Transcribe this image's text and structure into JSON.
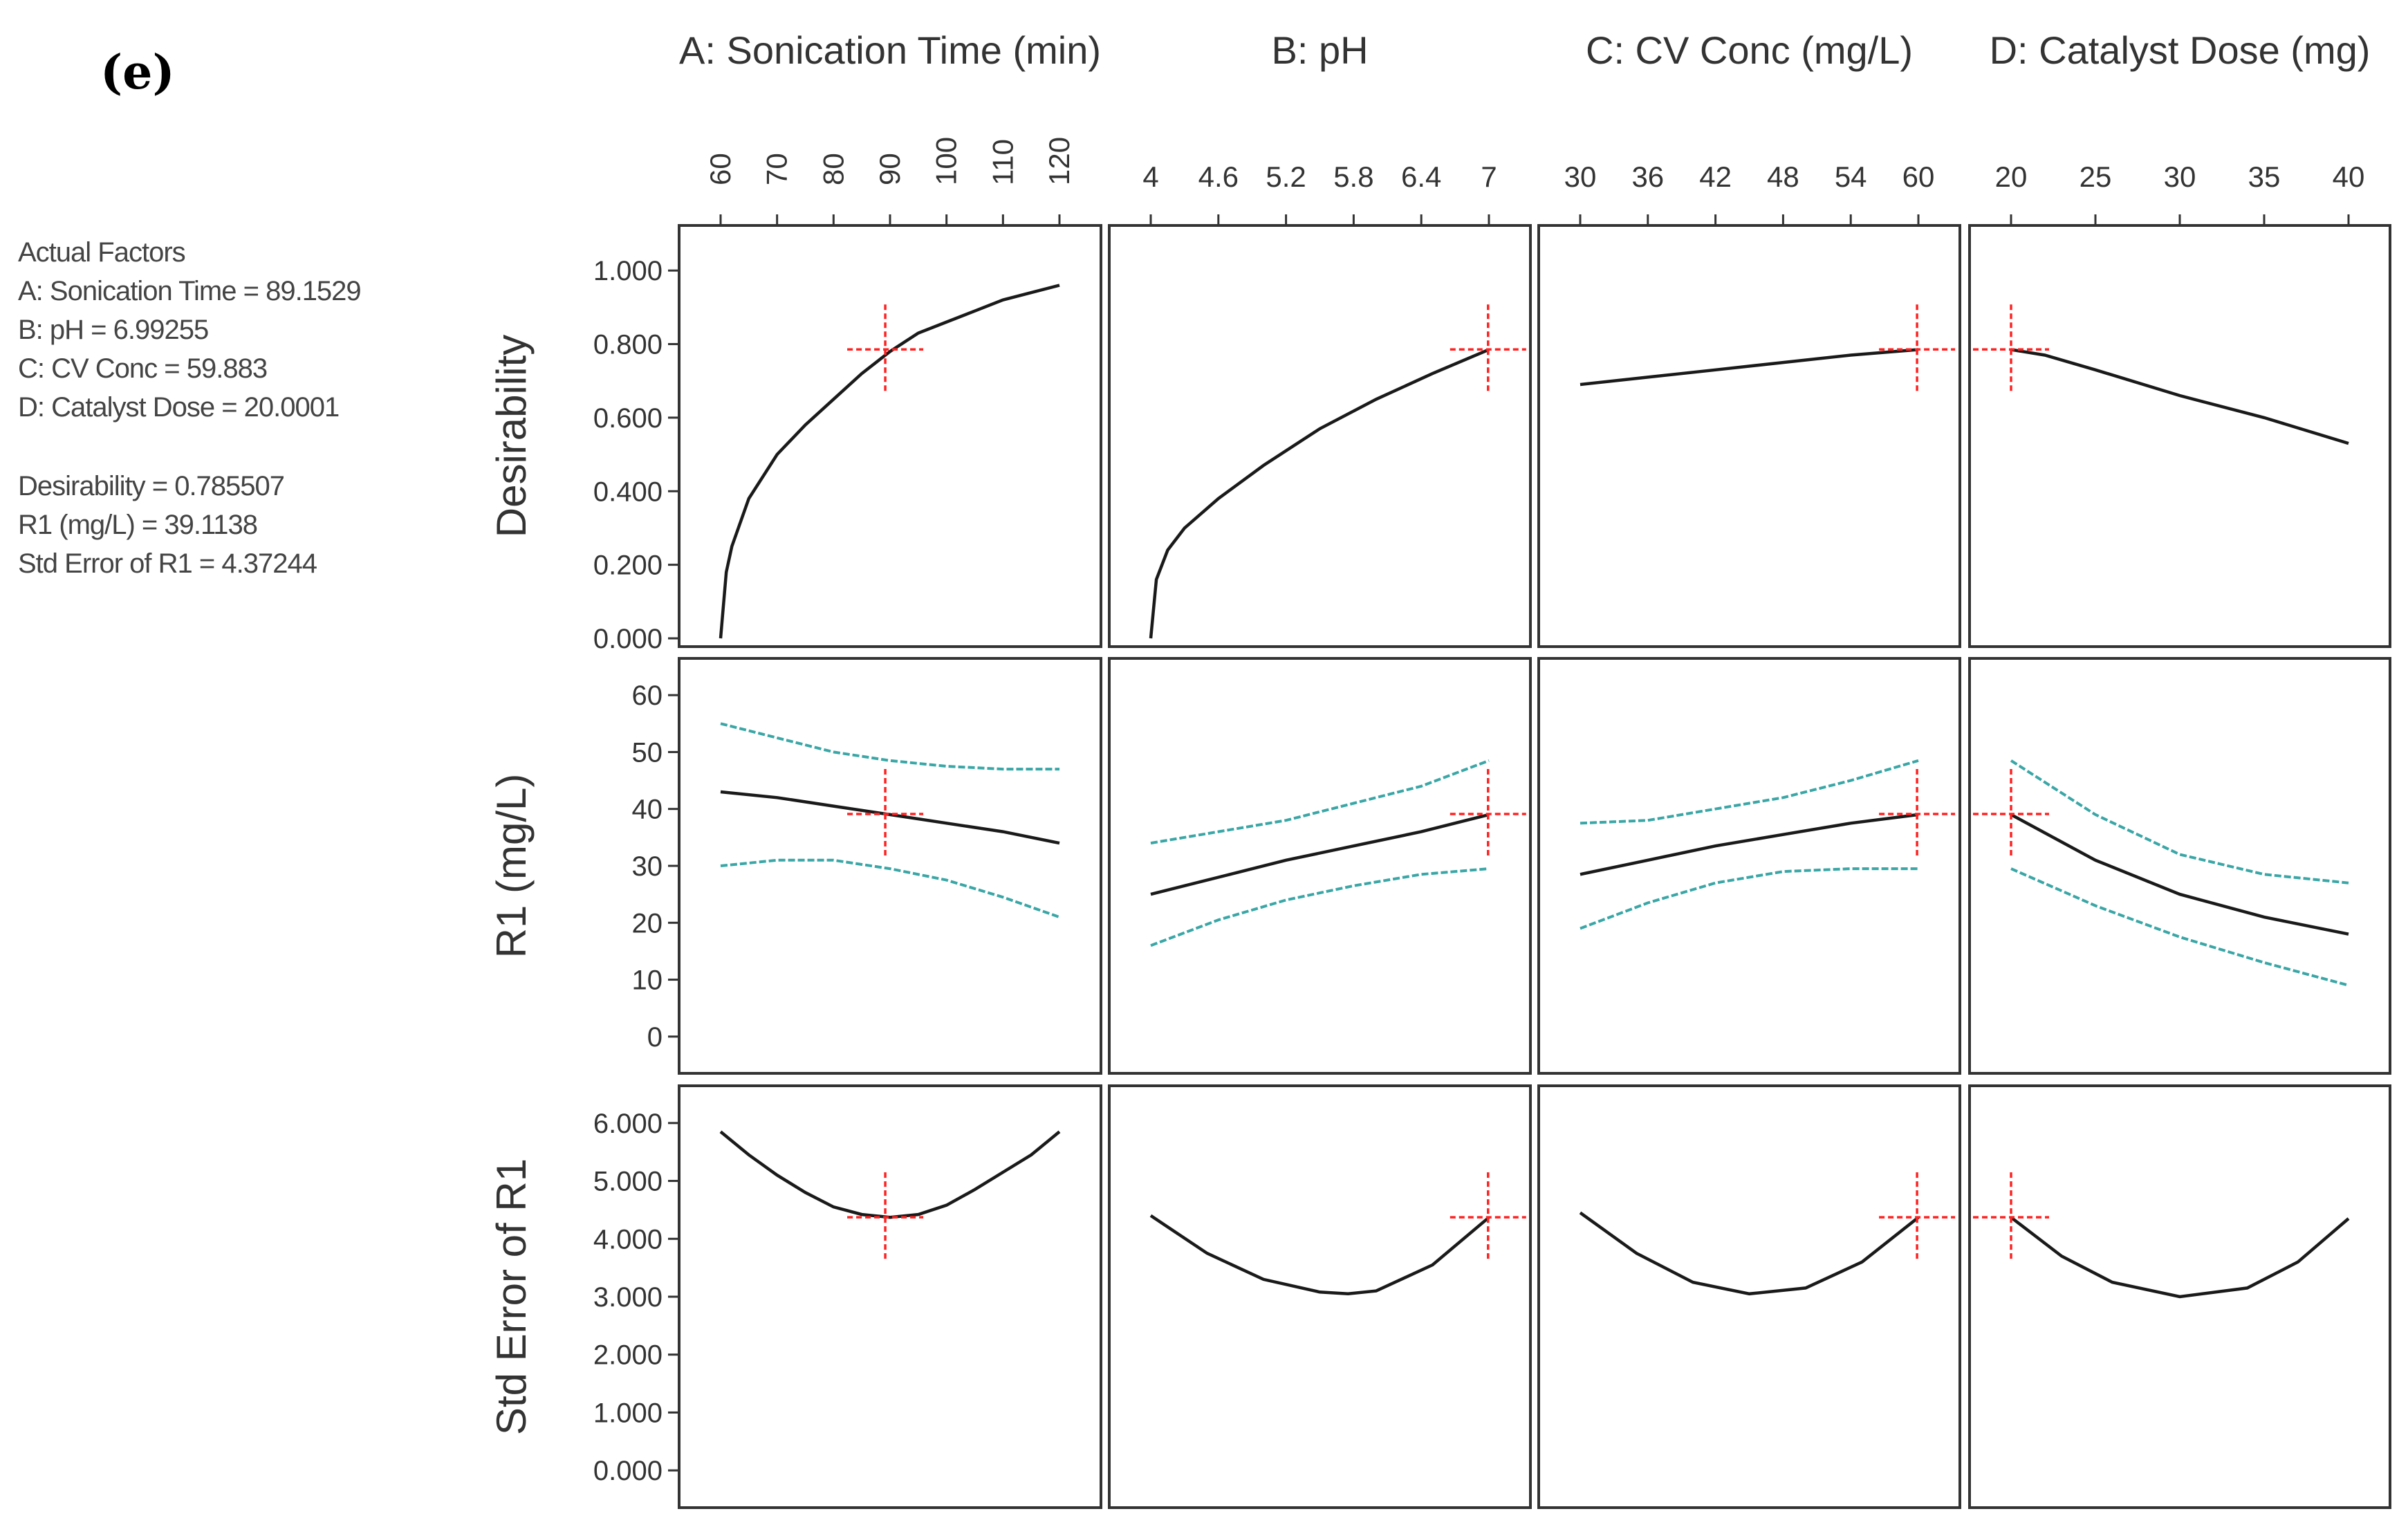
{
  "panel_label": "(e)",
  "info": {
    "header": "Actual Factors",
    "factors": [
      "A: Sonication Time = 89.1529",
      "B: pH = 6.99255",
      "C: CV Conc = 59.883",
      "D: Catalyst Dose = 20.0001"
    ],
    "results": [
      "Desirability = 0.785507",
      "R1 (mg/L) = 39.1138",
      "Std Error of R1 = 4.37244"
    ]
  },
  "colors": {
    "curve": "#1a1a1a",
    "band": "#3aa6a6",
    "marker": "#ff2222",
    "frame": "#333333"
  },
  "chart_data": {
    "type": "line",
    "title": "",
    "factors": [
      {
        "name": "A: Sonication Time (min)",
        "title_shown": "A: Sonication Time (min)",
        "ticks": [
          60,
          70,
          80,
          90,
          100,
          110,
          120
        ],
        "ticks_rotated": true,
        "range": [
          60,
          120
        ],
        "current": 89.1529
      },
      {
        "name": "B: pH",
        "title_shown": "B: pH",
        "ticks": [
          4,
          4.6,
          5.2,
          5.8,
          6.4,
          7
        ],
        "ticks_rotated": false,
        "range": [
          4,
          7
        ],
        "current": 6.99255
      },
      {
        "name": "C: CV Conc (mg/L)",
        "title_shown": "C: CV Conc (mg/L)",
        "ticks": [
          30,
          36,
          42,
          48,
          54,
          60
        ],
        "ticks_rotated": false,
        "range": [
          30,
          60
        ],
        "current": 59.883
      },
      {
        "name": "D: Catalyst Dose (mg)",
        "title_shown": "D: Catalyst Dose (mg)",
        "ticks": [
          20,
          25,
          30,
          35,
          40
        ],
        "ticks_rotated": false,
        "range": [
          20,
          40
        ],
        "current": 20.0001
      }
    ],
    "responses": [
      {
        "name": "Desirability",
        "ylim": [
          0,
          1.1
        ],
        "ticks": [
          "0.000",
          "0.200",
          "0.400",
          "0.600",
          "0.800",
          "1.000"
        ],
        "tick_values": [
          0,
          0.2,
          0.4,
          0.6,
          0.8,
          1.0
        ],
        "current": 0.7855,
        "series": [
          {
            "factor": "A",
            "x": [
              60,
              61,
              62,
              65,
              70,
              75,
              80,
              85,
              90,
              95,
              100,
              105,
              110,
              115,
              120
            ],
            "y": [
              0.0,
              0.18,
              0.25,
              0.38,
              0.5,
              0.58,
              0.65,
              0.72,
              0.78,
              0.83,
              0.86,
              0.89,
              0.92,
              0.94,
              0.96
            ]
          },
          {
            "factor": "B",
            "x": [
              4,
              4.05,
              4.15,
              4.3,
              4.6,
              5.0,
              5.5,
              6.0,
              6.5,
              7.0
            ],
            "y": [
              0.0,
              0.16,
              0.24,
              0.3,
              0.38,
              0.47,
              0.57,
              0.65,
              0.72,
              0.785
            ]
          },
          {
            "factor": "C",
            "x": [
              30,
              36,
              42,
              48,
              54,
              60
            ],
            "y": [
              0.69,
              0.71,
              0.73,
              0.75,
              0.77,
              0.785
            ]
          },
          {
            "factor": "D",
            "x": [
              20,
              22,
              25,
              30,
              35,
              40
            ],
            "y": [
              0.785,
              0.77,
              0.73,
              0.66,
              0.6,
              0.53
            ]
          }
        ]
      },
      {
        "name": "R1 (mg/L)",
        "ylim": [
          -5,
          65
        ],
        "ticks": [
          "0",
          "10",
          "20",
          "30",
          "40",
          "50",
          "60"
        ],
        "tick_values": [
          0,
          10,
          20,
          30,
          40,
          50,
          60
        ],
        "current": 39.1138,
        "series": [
          {
            "factor": "A",
            "x": [
              60,
              70,
              80,
              90,
              100,
              110,
              120
            ],
            "y": [
              43,
              42,
              40.5,
              39,
              37.5,
              36,
              34
            ],
            "upper": [
              55,
              52.5,
              50,
              48.5,
              47.5,
              47,
              47
            ],
            "lower": [
              30,
              31,
              31,
              29.5,
              27.5,
              24.5,
              21
            ]
          },
          {
            "factor": "B",
            "x": [
              4,
              4.6,
              5.2,
              5.8,
              6.4,
              7
            ],
            "y": [
              25,
              28,
              31,
              33.5,
              36,
              39
            ],
            "upper": [
              34,
              36,
              38,
              41,
              44,
              48.5
            ],
            "lower": [
              16,
              20.5,
              24,
              26.5,
              28.5,
              29.5
            ]
          },
          {
            "factor": "C",
            "x": [
              30,
              36,
              42,
              48,
              54,
              60
            ],
            "y": [
              28.5,
              31,
              33.5,
              35.5,
              37.5,
              39
            ],
            "upper": [
              37.5,
              38,
              40,
              42,
              45,
              48.5
            ],
            "lower": [
              19,
              23.5,
              27,
              29,
              29.5,
              29.5
            ]
          },
          {
            "factor": "D",
            "x": [
              20,
              25,
              30,
              35,
              40
            ],
            "y": [
              39,
              31,
              25,
              21,
              18
            ],
            "upper": [
              48.5,
              39,
              32,
              28.5,
              27
            ],
            "lower": [
              29.5,
              23,
              17.5,
              13,
              9
            ]
          }
        ]
      },
      {
        "name": "Std Error of R1",
        "ylim": [
          -0.5,
          6.5
        ],
        "ticks": [
          "0.000",
          "1.000",
          "2.000",
          "3.000",
          "4.000",
          "5.000",
          "6.000"
        ],
        "tick_values": [
          0,
          1,
          2,
          3,
          4,
          5,
          6
        ],
        "current": 4.3724,
        "series": [
          {
            "factor": "A",
            "x": [
              60,
              65,
              70,
              75,
              80,
              85,
              90,
              95,
              100,
              105,
              110,
              115,
              120
            ],
            "y": [
              5.85,
              5.45,
              5.1,
              4.8,
              4.55,
              4.42,
              4.37,
              4.42,
              4.58,
              4.85,
              5.15,
              5.45,
              5.85
            ]
          },
          {
            "factor": "B",
            "x": [
              4,
              4.5,
              5,
              5.5,
              5.75,
              6,
              6.5,
              7
            ],
            "y": [
              4.4,
              3.75,
              3.3,
              3.08,
              3.05,
              3.1,
              3.55,
              4.37
            ]
          },
          {
            "factor": "C",
            "x": [
              30,
              35,
              40,
              45,
              50,
              55,
              60
            ],
            "y": [
              4.45,
              3.75,
              3.25,
              3.05,
              3.15,
              3.6,
              4.37
            ]
          },
          {
            "factor": "D",
            "x": [
              20,
              23,
              26,
              30,
              34,
              37,
              40
            ],
            "y": [
              4.37,
              3.7,
              3.25,
              3.0,
              3.15,
              3.6,
              4.35
            ]
          }
        ]
      }
    ]
  }
}
